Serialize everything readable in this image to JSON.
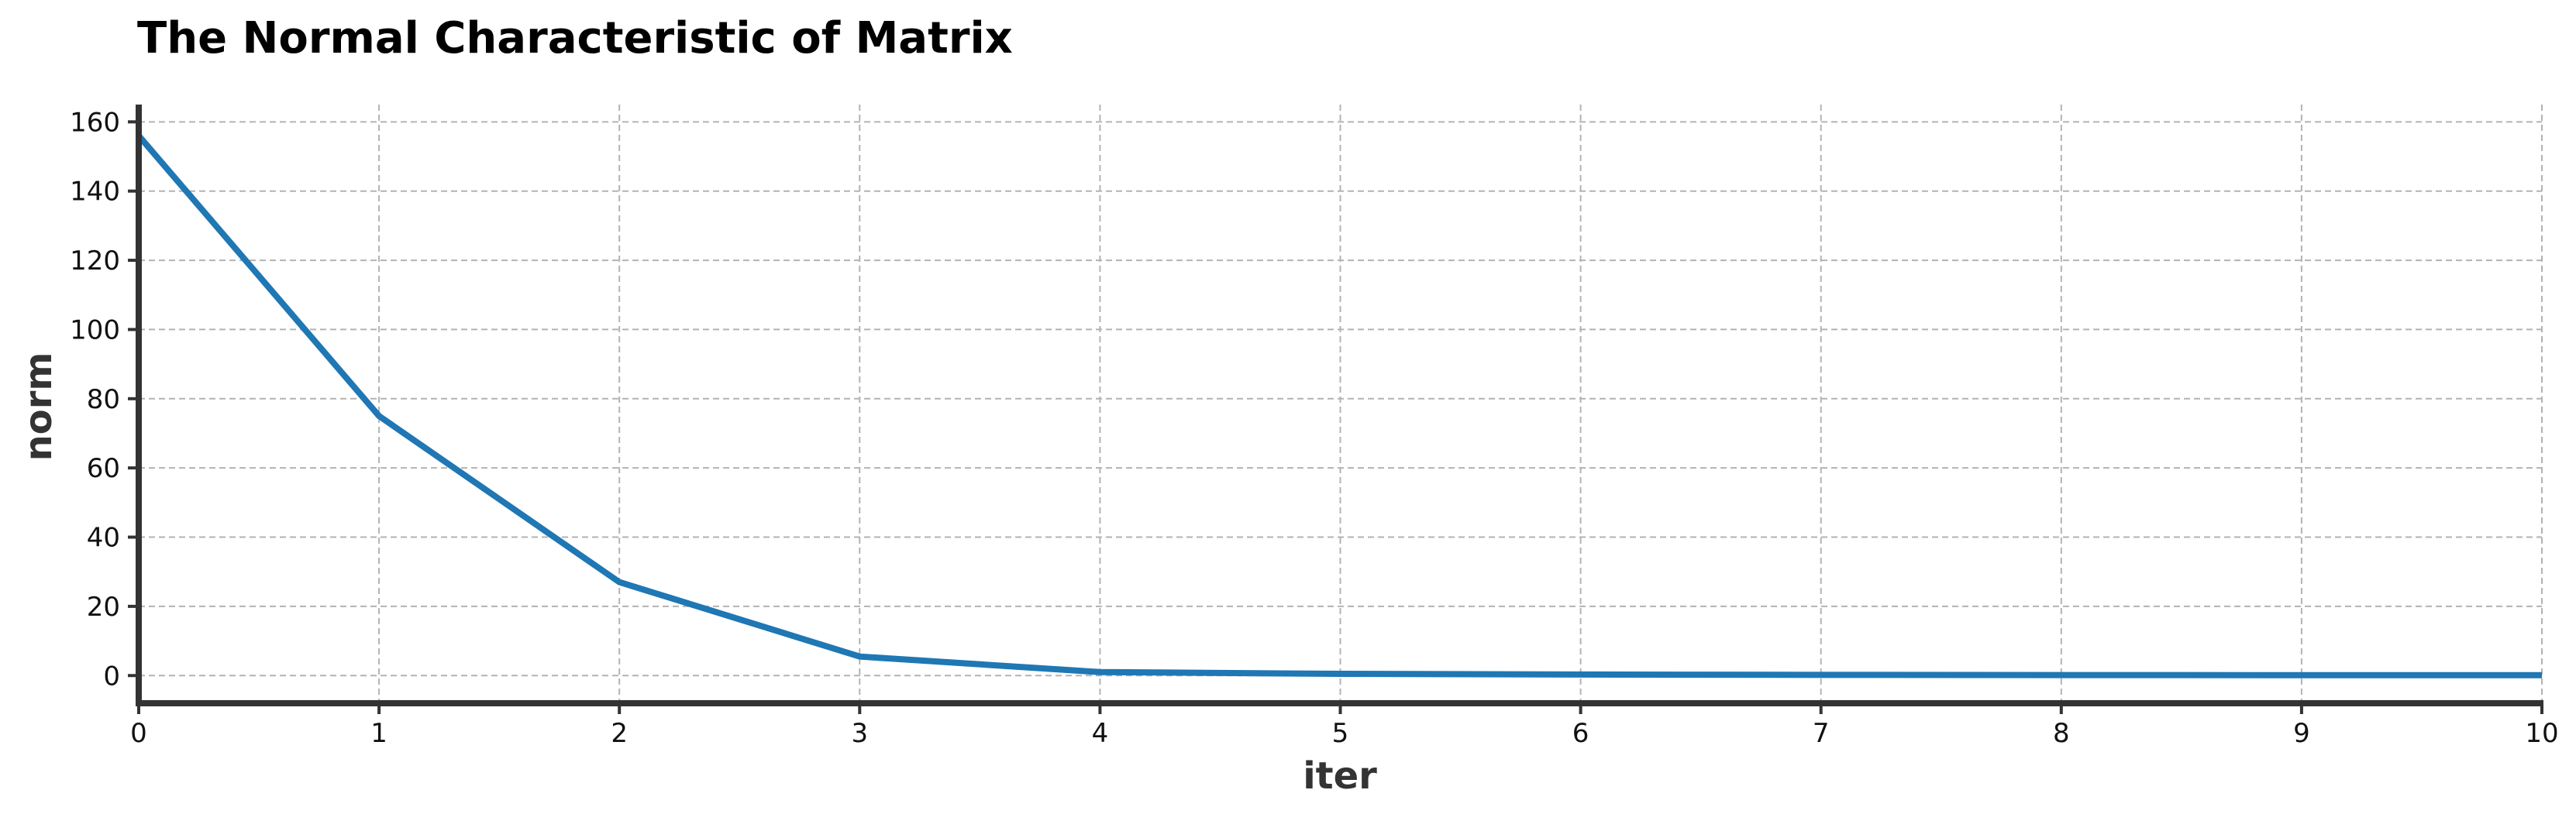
{
  "chart_data": {
    "type": "line",
    "title": "The Normal Characteristic of Matrix",
    "xlabel": "iter",
    "ylabel": "norm",
    "xlim": [
      0,
      10
    ],
    "ylim": [
      -8,
      165
    ],
    "xticks": [
      0,
      1,
      2,
      3,
      4,
      5,
      6,
      7,
      8,
      9,
      10
    ],
    "yticks": [
      0,
      20,
      40,
      60,
      80,
      100,
      120,
      140,
      160
    ],
    "grid": true,
    "series": [
      {
        "color": "#1f77b4",
        "x": [
          0,
          1,
          2,
          3,
          4,
          5,
          6,
          7,
          8,
          9,
          10
        ],
        "y": [
          156,
          75,
          27,
          5.5,
          1.0,
          0.5,
          0.3,
          0.2,
          0.15,
          0.1,
          0.1
        ]
      }
    ]
  }
}
